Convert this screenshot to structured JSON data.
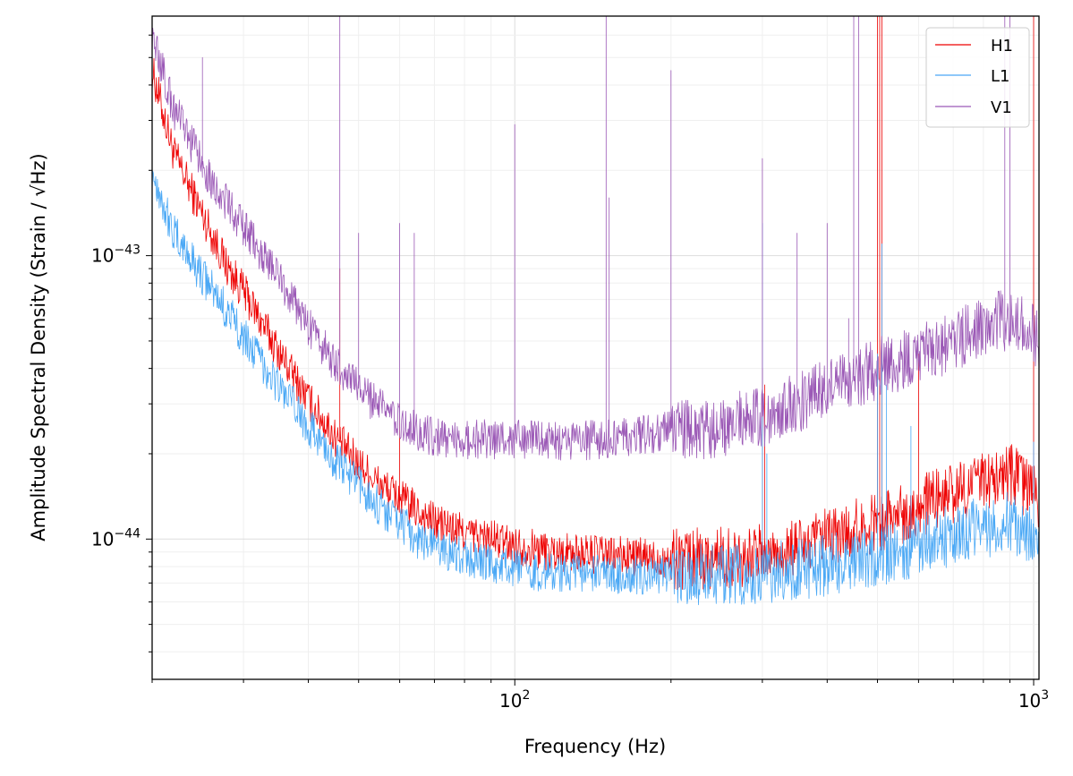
{
  "chart_data": {
    "type": "line",
    "xlabel": "Frequency (Hz)",
    "ylabel": "Amplitude Spectral Density (Strain / √Hz)",
    "x_scale": "log",
    "y_scale": "log",
    "xlim": [
      20,
      1024
    ],
    "ylim": [
      3.2e-45,
      7e-43
    ],
    "grid": true,
    "legend": "top-right",
    "x_ticks": [
      {
        "value": 100,
        "base": "10",
        "exp": "2"
      },
      {
        "value": 1000,
        "base": "10",
        "exp": "3"
      }
    ],
    "y_ticks": [
      {
        "value": 1e-44,
        "base": "10",
        "exp": "−44"
      },
      {
        "value": 1e-43,
        "base": "10",
        "exp": "−43"
      }
    ],
    "series": [
      {
        "name": "H1",
        "color": "#ee0000",
        "x": [
          20,
          22,
          25,
          28,
          30,
          35,
          40,
          45,
          50,
          55,
          60,
          65,
          70,
          80,
          90,
          100,
          120,
          150,
          180,
          200,
          250,
          300,
          350,
          400,
          500,
          600,
          700,
          800,
          900,
          1000,
          1024
        ],
        "y": [
          4.5e-43,
          2.3e-43,
          1.4e-43,
          9e-44,
          7.5e-44,
          4.6e-44,
          3.1e-44,
          2.3e-44,
          1.85e-44,
          1.55e-44,
          1.4e-44,
          1.25e-44,
          1.15e-44,
          1.05e-44,
          1e-44,
          9.5e-45,
          9e-45,
          8.8e-45,
          8.6e-45,
          8.5e-45,
          8.6e-45,
          8.8e-45,
          9.2e-45,
          1e-44,
          1.15e-44,
          1.3e-44,
          1.45e-44,
          1.6e-44,
          1.7e-44,
          1.45e-44,
          1.4e-44
        ],
        "lines": [
          {
            "f": 46,
            "a": 9e-44
          },
          {
            "f": 60,
            "a": 3e-44
          },
          {
            "f": 300,
            "a": 4e-44
          },
          {
            "f": 303,
            "a": 3.5e-44
          },
          {
            "f": 500,
            "a": 7e-43
          },
          {
            "f": 505,
            "a": 7e-43
          },
          {
            "f": 510,
            "a": 7e-43
          },
          {
            "f": 600,
            "a": 4.5e-44
          },
          {
            "f": 1000,
            "a": 7e-43
          }
        ]
      },
      {
        "name": "L1",
        "color": "#4aa8f5",
        "x": [
          20,
          22,
          25,
          28,
          30,
          35,
          40,
          45,
          50,
          55,
          60,
          65,
          70,
          80,
          90,
          100,
          120,
          150,
          180,
          200,
          250,
          300,
          350,
          400,
          500,
          600,
          700,
          800,
          900,
          1000,
          1024
        ],
        "y": [
          2e-43,
          1.2e-43,
          8.5e-44,
          6.3e-44,
          5.2e-44,
          3.5e-44,
          2.5e-44,
          1.9e-44,
          1.55e-44,
          1.3e-44,
          1.15e-44,
          1e-44,
          9.5e-45,
          8.6e-45,
          8.1e-45,
          7.8e-45,
          7.6e-45,
          7.5e-45,
          7.4e-45,
          7.4e-45,
          7.5e-45,
          7.6e-45,
          7.8e-45,
          8.1e-45,
          8.7e-45,
          9.5e-45,
          1.03e-44,
          1.1e-44,
          1.15e-44,
          1e-44,
          9.5e-45
        ],
        "lines": [
          {
            "f": 300,
            "a": 1.3e-43
          },
          {
            "f": 306,
            "a": 2e-44
          },
          {
            "f": 500,
            "a": 4.5e-44
          },
          {
            "f": 510,
            "a": 1.1e-43
          },
          {
            "f": 520,
            "a": 3.5e-44
          },
          {
            "f": 580,
            "a": 2.5e-44
          },
          {
            "f": 1000,
            "a": 2.2e-44
          }
        ]
      },
      {
        "name": "V1",
        "color": "#9b59b6",
        "x": [
          20,
          22,
          25,
          28,
          30,
          35,
          40,
          45,
          50,
          55,
          60,
          65,
          70,
          80,
          90,
          100,
          120,
          150,
          180,
          200,
          250,
          300,
          350,
          400,
          450,
          500,
          600,
          700,
          800,
          900,
          1000,
          1024
        ],
        "y": [
          6e-43,
          3.3e-43,
          2.1e-43,
          1.5e-43,
          1.25e-43,
          8.5e-44,
          5.6e-44,
          4.2e-44,
          3.4e-44,
          2.9e-44,
          2.6e-44,
          2.4e-44,
          2.3e-44,
          2.25e-44,
          2.25e-44,
          2.25e-44,
          2.2e-44,
          2.25e-44,
          2.35e-44,
          2.4e-44,
          2.5e-44,
          2.7e-44,
          3e-44,
          3.4e-44,
          3.7e-44,
          4e-44,
          4.4e-44,
          5e-44,
          5.6e-44,
          6e-44,
          5.2e-44,
          5e-44
        ],
        "lines": [
          {
            "f": 25,
            "a": 5e-43
          },
          {
            "f": 46,
            "a": 7e-43
          },
          {
            "f": 50,
            "a": 1.2e-43
          },
          {
            "f": 60,
            "a": 1.3e-43
          },
          {
            "f": 64,
            "a": 1.2e-43
          },
          {
            "f": 100,
            "a": 2.9e-43
          },
          {
            "f": 150,
            "a": 7e-43
          },
          {
            "f": 152,
            "a": 1.6e-43
          },
          {
            "f": 200,
            "a": 4.5e-43
          },
          {
            "f": 300,
            "a": 2.2e-43
          },
          {
            "f": 350,
            "a": 1.2e-43
          },
          {
            "f": 400,
            "a": 1.3e-43
          },
          {
            "f": 440,
            "a": 6e-44
          },
          {
            "f": 450,
            "a": 7e-43
          },
          {
            "f": 460,
            "a": 7e-43
          },
          {
            "f": 880,
            "a": 7e-43
          },
          {
            "f": 900,
            "a": 7e-43
          }
        ]
      }
    ]
  }
}
